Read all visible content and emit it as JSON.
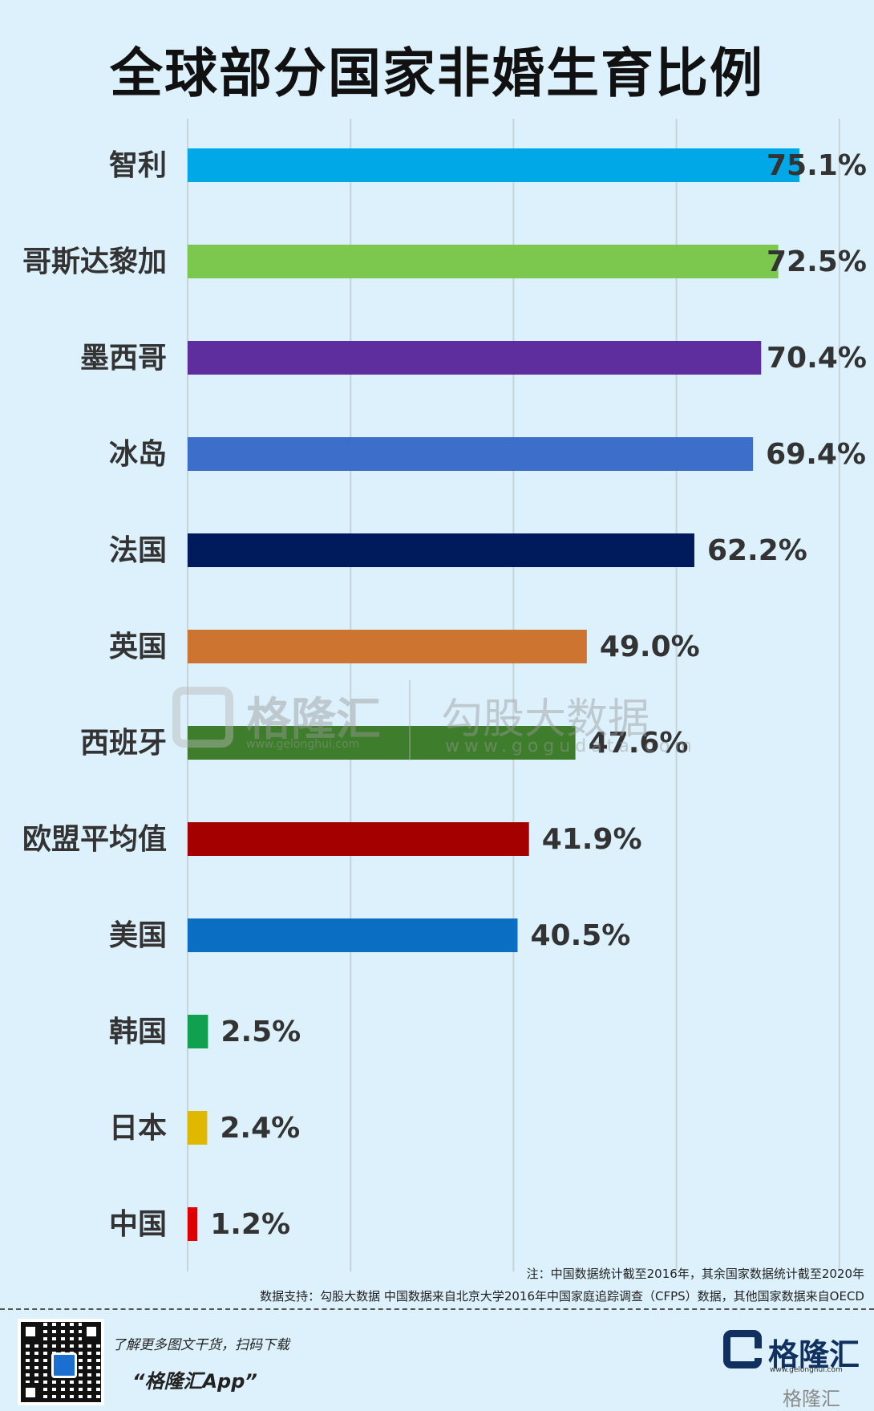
{
  "title": "全球部分国家非婚生育比例",
  "chart_data": {
    "type": "bar",
    "orientation": "horizontal",
    "categories": [
      "智利",
      "哥斯达黎加",
      "墨西哥",
      "冰岛",
      "法国",
      "英国",
      "西班牙",
      "欧盟平均值",
      "美国",
      "韩国",
      "日本",
      "中国"
    ],
    "values": [
      75.1,
      72.5,
      70.4,
      69.4,
      62.2,
      49.0,
      47.6,
      41.9,
      40.5,
      2.5,
      2.4,
      1.2
    ],
    "value_labels": [
      "75.1%",
      "72.5%",
      "70.4%",
      "69.4%",
      "62.2%",
      "49.0%",
      "47.6%",
      "41.9%",
      "40.5%",
      "2.5%",
      "2.4%",
      "1.2%"
    ],
    "colors": [
      "#00a8e8",
      "#7cc84f",
      "#5e2d9e",
      "#3d6fca",
      "#001b5c",
      "#cd7430",
      "#3d7d2c",
      "#a40000",
      "#0a6fc2",
      "#10a050",
      "#e0b800",
      "#e00000"
    ],
    "xlim": [
      0,
      80
    ],
    "grid": true,
    "title": "全球部分国家非婚生育比例"
  },
  "watermark": {
    "brand": "格隆汇",
    "brand_url": "www.gelonghui.com",
    "partner": "勾股大数据",
    "partner_url": "www.gogudata.com"
  },
  "notes": {
    "line1": "注：中国数据统计截至2016年，其余国家数据统计截至2020年",
    "line2": "数据支持：勾股大数据 中国数据来自北京大学2016年中国家庭追踪调查（CFPS）数据，其他国家数据来自OECD"
  },
  "footer": {
    "slogan": "了解更多图文干货，扫码下载",
    "app_name": "“格隆汇App”",
    "brand": "格隆汇",
    "brand_url": "www.gelonghui.com",
    "brand_small": "格隆汇"
  }
}
